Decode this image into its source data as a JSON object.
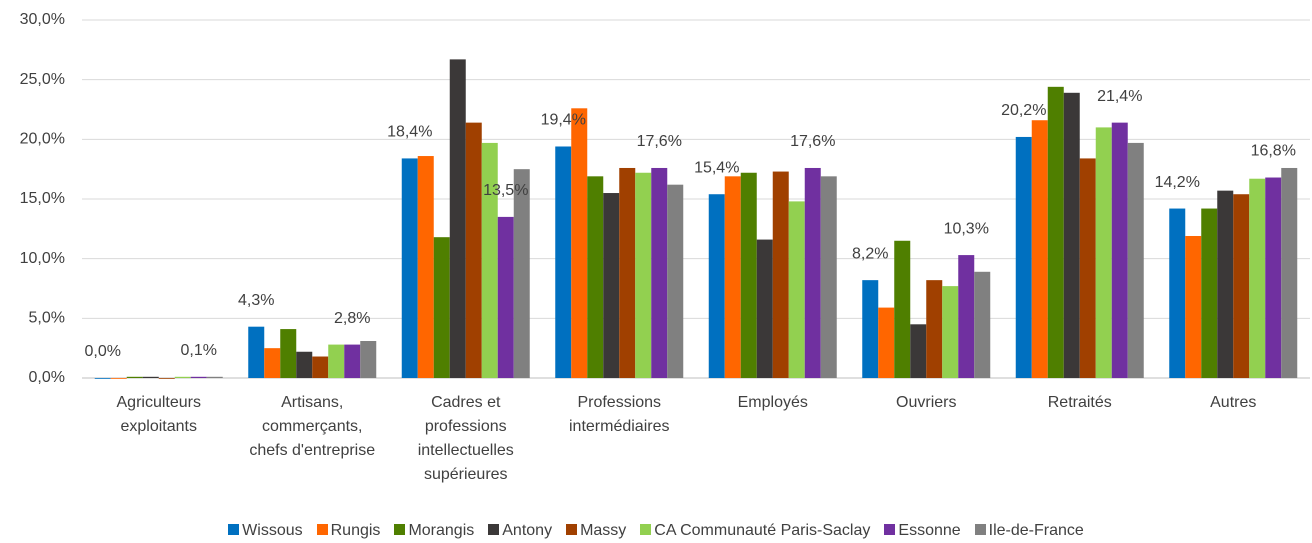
{
  "chart_data": {
    "type": "bar",
    "categories": [
      "Agriculteurs exploitants",
      "Artisans, commerçants, chefs d'entreprise",
      "Cadres et professions intellectuelles supérieures",
      "Professions intermédiaires",
      "Employés",
      "Ouvriers",
      "Retraités",
      "Autres"
    ],
    "series": [
      {
        "name": "Wissous",
        "color": "#0070c0",
        "values": [
          0.0,
          4.3,
          18.4,
          19.4,
          15.4,
          8.2,
          20.2,
          14.2
        ],
        "value_labels": [
          "0,0%",
          "4,3%",
          "18,4%",
          "19,4%",
          "15,4%",
          "8,2%",
          "20,2%",
          "14,2%"
        ]
      },
      {
        "name": "Rungis",
        "color": "#ff6600",
        "values": [
          0.0,
          2.5,
          18.6,
          22.6,
          16.9,
          5.9,
          21.6,
          11.9
        ]
      },
      {
        "name": "Morangis",
        "color": "#4f7f00",
        "values": [
          0.1,
          4.1,
          11.8,
          16.9,
          17.2,
          11.5,
          24.4,
          14.2
        ]
      },
      {
        "name": "Antony",
        "color": "#3b3838",
        "values": [
          0.1,
          2.2,
          26.7,
          15.5,
          11.6,
          4.5,
          23.9,
          15.7
        ]
      },
      {
        "name": "Massy",
        "color": "#a04000",
        "values": [
          0.0,
          1.8,
          21.4,
          17.6,
          17.3,
          8.2,
          18.4,
          15.4
        ]
      },
      {
        "name": "CA Communauté Paris-Saclay",
        "color": "#92d050",
        "values": [
          0.1,
          2.8,
          19.7,
          17.2,
          14.8,
          7.7,
          21.0,
          16.7
        ]
      },
      {
        "name": "Essonne",
        "color": "#7030a0",
        "values": [
          0.1,
          2.8,
          13.5,
          17.6,
          17.6,
          10.3,
          21.4,
          16.8
        ],
        "value_labels": [
          "0,1%",
          "2,8%",
          "13,5%",
          "17,6%",
          "17,6%",
          "10,3%",
          "21,4%",
          "16,8%"
        ]
      },
      {
        "name": "Ile-de-France",
        "color": "#808080",
        "values": [
          0.1,
          3.1,
          17.5,
          16.2,
          16.9,
          8.9,
          19.7,
          17.6
        ]
      }
    ],
    "ylim": [
      0,
      30
    ],
    "yticks": [
      {
        "value": 0,
        "label": "0,0%"
      },
      {
        "value": 5,
        "label": "5,0%"
      },
      {
        "value": 10,
        "label": "10,0%"
      },
      {
        "value": 15,
        "label": "15,0%"
      },
      {
        "value": 20,
        "label": "20,0%"
      },
      {
        "value": 25,
        "label": "25,0%"
      },
      {
        "value": 30,
        "label": "30,0%"
      }
    ],
    "grid": true
  }
}
